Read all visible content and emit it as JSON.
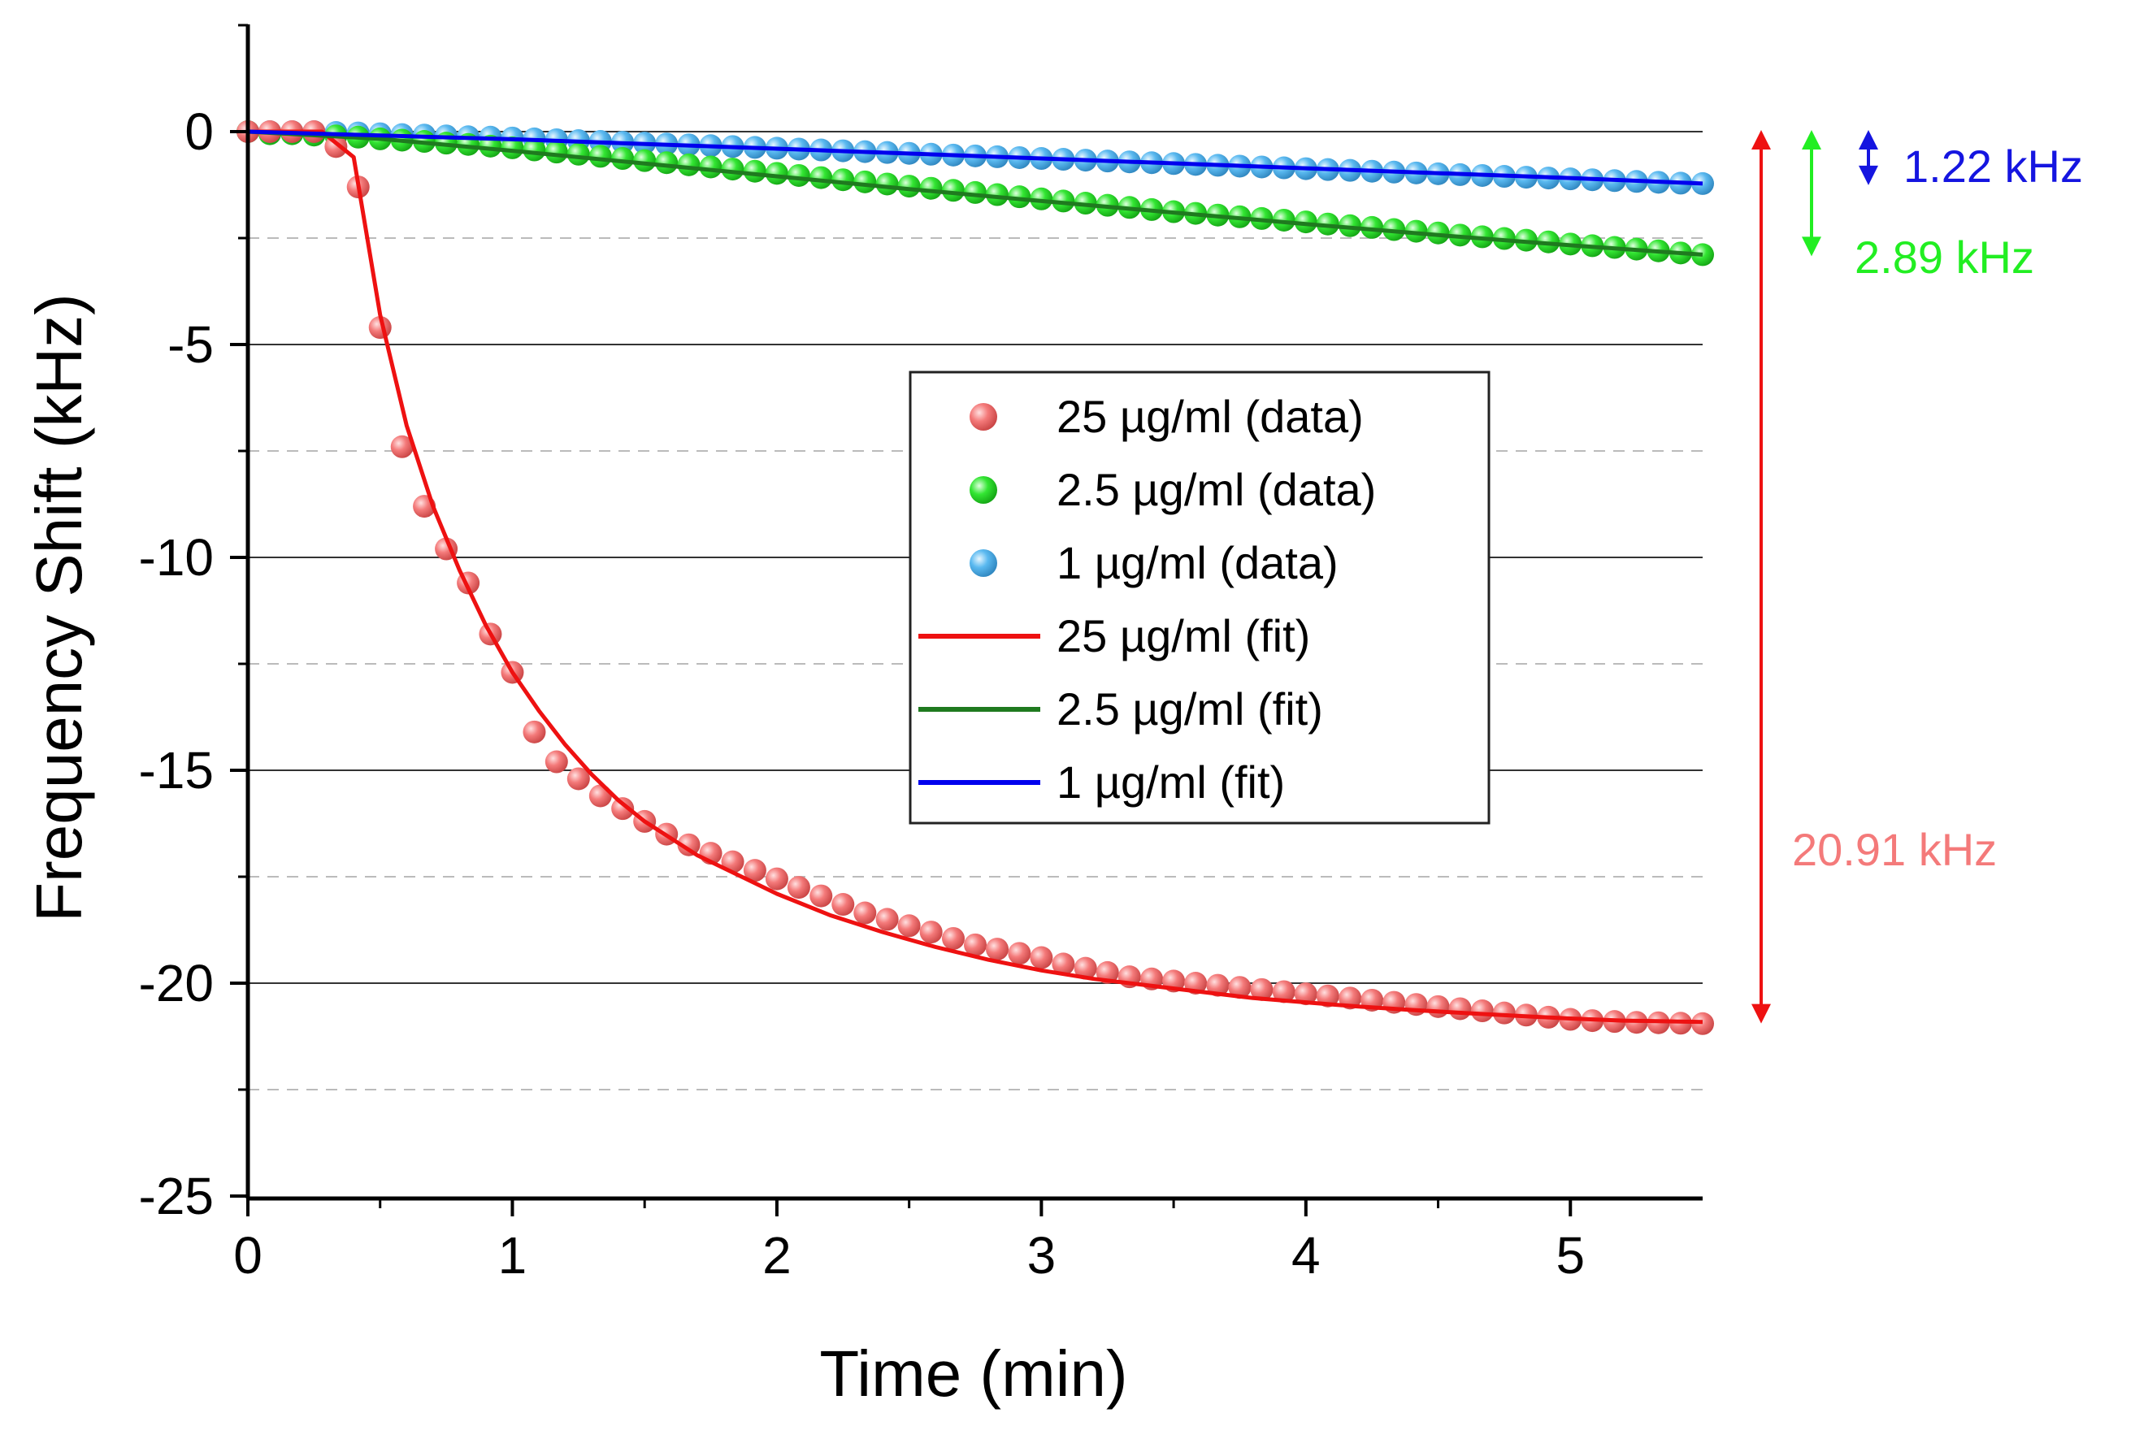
{
  "chart_data": {
    "type": "scatter",
    "title": "",
    "xlabel": "Time (min)",
    "ylabel": "Frequency Shift (kHz)",
    "xlim": [
      0,
      5.5
    ],
    "ylim": [
      -25,
      2.5
    ],
    "xticks": [
      0,
      1,
      2,
      3,
      4,
      5
    ],
    "xtick_labels": [
      "0",
      "1",
      "2",
      "3",
      "4",
      "5"
    ],
    "yticks": [
      0,
      -5,
      -10,
      -15,
      -20,
      -25
    ],
    "ytick_labels": [
      "0",
      "-5",
      "-10",
      "-15",
      "-20",
      "-25"
    ],
    "major_gridlines_y": [
      0,
      -5,
      -10,
      -15,
      -20
    ],
    "minor_gridlines_y": [
      -2.5,
      -7.5,
      -12.5,
      -17.5,
      -22.5
    ],
    "legend_position": "center",
    "series": [
      {
        "name": "25 µg/ml (data)",
        "kind": "points",
        "color": "#f47a7a",
        "points": [
          [
            0,
            0
          ],
          [
            0.083,
            0
          ],
          [
            0.167,
            0
          ],
          [
            0.25,
            0
          ],
          [
            0.333,
            -0.35
          ],
          [
            0.417,
            -1.3
          ],
          [
            0.5,
            -4.6
          ],
          [
            0.583,
            -7.4
          ],
          [
            0.667,
            -8.8
          ],
          [
            0.75,
            -9.8
          ],
          [
            0.833,
            -10.6
          ],
          [
            0.917,
            -11.8
          ],
          [
            1.0,
            -12.7
          ],
          [
            1.083,
            -14.1
          ],
          [
            1.167,
            -14.8
          ],
          [
            1.25,
            -15.2
          ],
          [
            1.333,
            -15.6
          ],
          [
            1.417,
            -15.9
          ],
          [
            1.5,
            -16.2
          ],
          [
            1.583,
            -16.5
          ],
          [
            1.667,
            -16.75
          ],
          [
            1.75,
            -16.95
          ],
          [
            1.833,
            -17.15
          ],
          [
            1.917,
            -17.35
          ],
          [
            2.0,
            -17.55
          ],
          [
            2.083,
            -17.75
          ],
          [
            2.167,
            -17.95
          ],
          [
            2.25,
            -18.15
          ],
          [
            2.333,
            -18.35
          ],
          [
            2.417,
            -18.5
          ],
          [
            2.5,
            -18.65
          ],
          [
            2.583,
            -18.8
          ],
          [
            2.667,
            -18.95
          ],
          [
            2.75,
            -19.1
          ],
          [
            2.833,
            -19.2
          ],
          [
            2.917,
            -19.3
          ],
          [
            3.0,
            -19.4
          ],
          [
            3.083,
            -19.55
          ],
          [
            3.167,
            -19.65
          ],
          [
            3.25,
            -19.75
          ],
          [
            3.333,
            -19.85
          ],
          [
            3.417,
            -19.9
          ],
          [
            3.5,
            -19.95
          ],
          [
            3.583,
            -20.0
          ],
          [
            3.667,
            -20.05
          ],
          [
            3.75,
            -20.1
          ],
          [
            3.833,
            -20.15
          ],
          [
            3.917,
            -20.2
          ],
          [
            4.0,
            -20.25
          ],
          [
            4.083,
            -20.3
          ],
          [
            4.167,
            -20.35
          ],
          [
            4.25,
            -20.4
          ],
          [
            4.333,
            -20.45
          ],
          [
            4.417,
            -20.5
          ],
          [
            4.5,
            -20.55
          ],
          [
            4.583,
            -20.6
          ],
          [
            4.667,
            -20.65
          ],
          [
            4.75,
            -20.7
          ],
          [
            4.833,
            -20.75
          ],
          [
            4.917,
            -20.8
          ],
          [
            5.0,
            -20.85
          ],
          [
            5.083,
            -20.88
          ],
          [
            5.167,
            -20.9
          ],
          [
            5.25,
            -20.92
          ],
          [
            5.333,
            -20.93
          ],
          [
            5.417,
            -20.94
          ],
          [
            5.5,
            -20.95
          ]
        ]
      },
      {
        "name": "2.5 µg/ml (data)",
        "kind": "points",
        "color": "#33e633",
        "points": [
          [
            0,
            0
          ],
          [
            0.083,
            -0.05
          ],
          [
            0.167,
            -0.05
          ],
          [
            0.25,
            -0.08
          ],
          [
            0.333,
            -0.1
          ],
          [
            0.417,
            -0.13
          ],
          [
            0.5,
            -0.17
          ],
          [
            0.583,
            -0.2
          ],
          [
            0.667,
            -0.23
          ],
          [
            0.75,
            -0.27
          ],
          [
            0.833,
            -0.3
          ],
          [
            0.917,
            -0.34
          ],
          [
            1.0,
            -0.38
          ],
          [
            1.083,
            -0.43
          ],
          [
            1.167,
            -0.48
          ],
          [
            1.25,
            -0.53
          ],
          [
            1.333,
            -0.58
          ],
          [
            1.417,
            -0.63
          ],
          [
            1.5,
            -0.68
          ],
          [
            1.583,
            -0.73
          ],
          [
            1.667,
            -0.78
          ],
          [
            1.75,
            -0.83
          ],
          [
            1.833,
            -0.88
          ],
          [
            1.917,
            -0.93
          ],
          [
            2.0,
            -0.98
          ],
          [
            2.083,
            -1.03
          ],
          [
            2.167,
            -1.08
          ],
          [
            2.25,
            -1.13
          ],
          [
            2.333,
            -1.18
          ],
          [
            2.417,
            -1.23
          ],
          [
            2.5,
            -1.28
          ],
          [
            2.583,
            -1.33
          ],
          [
            2.667,
            -1.38
          ],
          [
            2.75,
            -1.43
          ],
          [
            2.833,
            -1.48
          ],
          [
            2.917,
            -1.53
          ],
          [
            3.0,
            -1.58
          ],
          [
            3.083,
            -1.63
          ],
          [
            3.167,
            -1.68
          ],
          [
            3.25,
            -1.73
          ],
          [
            3.333,
            -1.78
          ],
          [
            3.417,
            -1.83
          ],
          [
            3.5,
            -1.88
          ],
          [
            3.583,
            -1.92
          ],
          [
            3.667,
            -1.96
          ],
          [
            3.75,
            -2.0
          ],
          [
            3.833,
            -2.04
          ],
          [
            3.917,
            -2.08
          ],
          [
            4.0,
            -2.12
          ],
          [
            4.083,
            -2.17
          ],
          [
            4.167,
            -2.21
          ],
          [
            4.25,
            -2.25
          ],
          [
            4.333,
            -2.3
          ],
          [
            4.417,
            -2.34
          ],
          [
            4.5,
            -2.38
          ],
          [
            4.583,
            -2.43
          ],
          [
            4.667,
            -2.47
          ],
          [
            4.75,
            -2.51
          ],
          [
            4.833,
            -2.55
          ],
          [
            4.917,
            -2.59
          ],
          [
            5.0,
            -2.64
          ],
          [
            5.083,
            -2.68
          ],
          [
            5.167,
            -2.72
          ],
          [
            5.25,
            -2.76
          ],
          [
            5.333,
            -2.8
          ],
          [
            5.417,
            -2.85
          ],
          [
            5.5,
            -2.89
          ]
        ]
      },
      {
        "name": "1 µg/ml (data)",
        "kind": "points",
        "color": "#5ab9f0",
        "points": [
          [
            0,
            0
          ],
          [
            0.083,
            0
          ],
          [
            0.167,
            0
          ],
          [
            0.25,
            0
          ],
          [
            0.333,
            -0.02
          ],
          [
            0.417,
            -0.03
          ],
          [
            0.5,
            -0.05
          ],
          [
            0.583,
            -0.07
          ],
          [
            0.667,
            -0.08
          ],
          [
            0.75,
            -0.1
          ],
          [
            0.833,
            -0.12
          ],
          [
            0.917,
            -0.13
          ],
          [
            1.0,
            -0.15
          ],
          [
            1.083,
            -0.17
          ],
          [
            1.167,
            -0.19
          ],
          [
            1.25,
            -0.21
          ],
          [
            1.333,
            -0.23
          ],
          [
            1.417,
            -0.25
          ],
          [
            1.5,
            -0.27
          ],
          [
            1.583,
            -0.29
          ],
          [
            1.667,
            -0.31
          ],
          [
            1.75,
            -0.33
          ],
          [
            1.833,
            -0.35
          ],
          [
            1.917,
            -0.37
          ],
          [
            2.0,
            -0.39
          ],
          [
            2.083,
            -0.41
          ],
          [
            2.167,
            -0.43
          ],
          [
            2.25,
            -0.45
          ],
          [
            2.333,
            -0.47
          ],
          [
            2.417,
            -0.49
          ],
          [
            2.5,
            -0.51
          ],
          [
            2.583,
            -0.53
          ],
          [
            2.667,
            -0.55
          ],
          [
            2.75,
            -0.57
          ],
          [
            2.833,
            -0.59
          ],
          [
            2.917,
            -0.61
          ],
          [
            3.0,
            -0.63
          ],
          [
            3.083,
            -0.65
          ],
          [
            3.167,
            -0.67
          ],
          [
            3.25,
            -0.69
          ],
          [
            3.333,
            -0.71
          ],
          [
            3.417,
            -0.73
          ],
          [
            3.5,
            -0.75
          ],
          [
            3.583,
            -0.77
          ],
          [
            3.667,
            -0.79
          ],
          [
            3.75,
            -0.81
          ],
          [
            3.833,
            -0.83
          ],
          [
            3.917,
            -0.85
          ],
          [
            4.0,
            -0.87
          ],
          [
            4.083,
            -0.89
          ],
          [
            4.167,
            -0.91
          ],
          [
            4.25,
            -0.93
          ],
          [
            4.333,
            -0.95
          ],
          [
            4.417,
            -0.97
          ],
          [
            4.5,
            -0.99
          ],
          [
            4.583,
            -1.01
          ],
          [
            4.667,
            -1.03
          ],
          [
            4.75,
            -1.05
          ],
          [
            4.833,
            -1.07
          ],
          [
            4.917,
            -1.09
          ],
          [
            5.0,
            -1.11
          ],
          [
            5.083,
            -1.13
          ],
          [
            5.167,
            -1.15
          ],
          [
            5.25,
            -1.17
          ],
          [
            5.333,
            -1.19
          ],
          [
            5.417,
            -1.21
          ],
          [
            5.5,
            -1.22
          ]
        ]
      },
      {
        "name": "25 µg/ml (fit)",
        "kind": "line",
        "color": "#ee1111",
        "points": [
          [
            0,
            0
          ],
          [
            0.28,
            0
          ],
          [
            0.4,
            -0.6
          ],
          [
            0.5,
            -4.3
          ],
          [
            0.6,
            -6.9
          ],
          [
            0.7,
            -8.8
          ],
          [
            0.8,
            -10.3
          ],
          [
            0.9,
            -11.6
          ],
          [
            1.0,
            -12.7
          ],
          [
            1.1,
            -13.6
          ],
          [
            1.2,
            -14.4
          ],
          [
            1.3,
            -15.1
          ],
          [
            1.4,
            -15.7
          ],
          [
            1.5,
            -16.2
          ],
          [
            1.6,
            -16.6
          ],
          [
            1.7,
            -17.0
          ],
          [
            1.8,
            -17.3
          ],
          [
            1.9,
            -17.6
          ],
          [
            2.0,
            -17.9
          ],
          [
            2.2,
            -18.4
          ],
          [
            2.4,
            -18.8
          ],
          [
            2.6,
            -19.15
          ],
          [
            2.8,
            -19.45
          ],
          [
            3.0,
            -19.7
          ],
          [
            3.2,
            -19.9
          ],
          [
            3.4,
            -20.05
          ],
          [
            3.6,
            -20.2
          ],
          [
            3.8,
            -20.35
          ],
          [
            4.0,
            -20.45
          ],
          [
            4.2,
            -20.55
          ],
          [
            4.4,
            -20.63
          ],
          [
            4.6,
            -20.7
          ],
          [
            4.8,
            -20.77
          ],
          [
            5.0,
            -20.83
          ],
          [
            5.2,
            -20.88
          ],
          [
            5.5,
            -20.91
          ]
        ]
      },
      {
        "name": "2.5 µg/ml (fit)",
        "kind": "line",
        "color": "#1f7a1f",
        "points": [
          [
            0,
            0
          ],
          [
            0.5,
            -0.17
          ],
          [
            1.0,
            -0.45
          ],
          [
            1.5,
            -0.75
          ],
          [
            2.0,
            -1.05
          ],
          [
            2.5,
            -1.35
          ],
          [
            3.0,
            -1.63
          ],
          [
            3.5,
            -1.9
          ],
          [
            4.0,
            -2.17
          ],
          [
            4.5,
            -2.43
          ],
          [
            5.0,
            -2.67
          ],
          [
            5.5,
            -2.89
          ]
        ]
      },
      {
        "name": "1 µg/ml (fit)",
        "kind": "line",
        "color": "#0000ee",
        "points": [
          [
            0,
            0
          ],
          [
            1.0,
            -0.18
          ],
          [
            2.0,
            -0.4
          ],
          [
            3.0,
            -0.63
          ],
          [
            4.0,
            -0.86
          ],
          [
            5.0,
            -1.09
          ],
          [
            5.5,
            -1.22
          ]
        ]
      }
    ],
    "annotations": [
      {
        "text": "1.22 kHz",
        "color": "#1515e0",
        "value": -1.22
      },
      {
        "text": "2.89 kHz",
        "color": "#22ee22",
        "value": -2.89
      },
      {
        "text": "20.91 kHz",
        "color": "#f47a7a",
        "value": -20.91
      }
    ]
  }
}
